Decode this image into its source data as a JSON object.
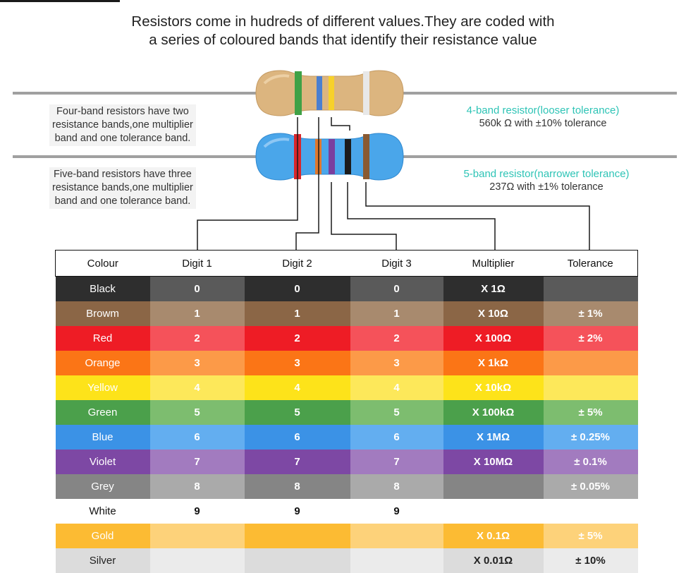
{
  "heading": {
    "line1": "Resistors come in hudreds of different values.They are coded with",
    "line2": "a series of coloured bands that identify their resistance value"
  },
  "notes": {
    "four_band": [
      "Four-band resistors have two",
      "resistance bands,one multiplier",
      "band and one tolerance band."
    ],
    "five_band": [
      "Five-band resistors have three",
      "resistance bands,one multiplier",
      "band and one tolerance band."
    ]
  },
  "labels": {
    "four_band": {
      "title": "4-band resistor(looser tolerance)",
      "value": "560k Ω with ±10% tolerance"
    },
    "five_band": {
      "title": "5-band resistor(narrower tolerance)",
      "value": "237Ω with ±1% tolerance"
    }
  },
  "colors": {
    "accent_label": "#2ec4b6",
    "resistor_tan": "#dcb57f",
    "resistor_blue": "#4aa6ea",
    "lead": "#9a9a9a"
  },
  "resistor_bands": {
    "four_band": [
      "Green",
      "Blue",
      "Yellow",
      "Silver"
    ],
    "five_band": [
      "Red",
      "Orange",
      "Violet",
      "Black",
      "Brown"
    ]
  },
  "table": {
    "headers": [
      "Colour",
      "Digit 1",
      "Digit 2",
      "Digit 3",
      "Multiplier",
      "Tolerance"
    ],
    "rows": [
      {
        "name": "Black",
        "d1": "0",
        "d2": "0",
        "d3": "0",
        "mult": "X 1Ω",
        "tol": "",
        "colors": [
          "#2e2e2e",
          "#5a5a5a",
          "#2e2e2e",
          "#5a5a5a",
          "#2e2e2e",
          "#5a5a5a"
        ],
        "nameColor": "#ffffff"
      },
      {
        "name": "Browm",
        "d1": "1",
        "d2": "1",
        "d3": "1",
        "mult": "X 10Ω",
        "tol": "± 1%",
        "colors": [
          "#8b6646",
          "#a88a6e",
          "#8b6646",
          "#a88a6e",
          "#8b6646",
          "#a88a6e"
        ],
        "nameColor": "#ffffff"
      },
      {
        "name": "Red",
        "d1": "2",
        "d2": "2",
        "d3": "2",
        "mult": "X 100Ω",
        "tol": "± 2%",
        "colors": [
          "#ee1c25",
          "#f5525a",
          "#ee1c25",
          "#f5525a",
          "#ee1c25",
          "#f5525a"
        ],
        "nameColor": "#ffffff"
      },
      {
        "name": "Orange",
        "d1": "3",
        "d2": "3",
        "d3": "3",
        "mult": "X 1kΩ",
        "tol": "",
        "colors": [
          "#fb7516",
          "#fc9a48",
          "#fb7516",
          "#fc9a48",
          "#fb7516",
          "#fc9a48"
        ],
        "nameColor": "#ffffff"
      },
      {
        "name": "Yellow",
        "d1": "4",
        "d2": "4",
        "d3": "4",
        "mult": "X 10kΩ",
        "tol": "",
        "colors": [
          "#fde31a",
          "#fde85a",
          "#fde31a",
          "#fde85a",
          "#fde31a",
          "#fde85a"
        ],
        "nameColor": "#ffffff"
      },
      {
        "name": "Green",
        "d1": "5",
        "d2": "5",
        "d3": "5",
        "mult": "X 100kΩ",
        "tol": "± 5%",
        "colors": [
          "#4ba04b",
          "#7dbd6f",
          "#4ba04b",
          "#7dbd6f",
          "#4ba04b",
          "#7dbd6f"
        ],
        "nameColor": "#ffffff"
      },
      {
        "name": "Blue",
        "d1": "6",
        "d2": "6",
        "d3": "6",
        "mult": "X 1MΩ",
        "tol": "± 0.25%",
        "colors": [
          "#3b92e6",
          "#63aef0",
          "#3b92e6",
          "#63aef0",
          "#3b92e6",
          "#63aef0"
        ],
        "nameColor": "#ffffff"
      },
      {
        "name": "Violet",
        "d1": "7",
        "d2": "7",
        "d3": "7",
        "mult": "X 10MΩ",
        "tol": "± 0.1%",
        "colors": [
          "#7d48a4",
          "#a27bbf",
          "#7d48a4",
          "#a27bbf",
          "#7d48a4",
          "#a27bbf"
        ],
        "nameColor": "#ffffff"
      },
      {
        "name": "Grey",
        "d1": "8",
        "d2": "8",
        "d3": "8",
        "mult": "",
        "tol": "± 0.05%",
        "colors": [
          "#858585",
          "#aaaaaa",
          "#858585",
          "#aaaaaa",
          "#858585",
          "#aaaaaa"
        ],
        "nameColor": "#ffffff"
      },
      {
        "name": "White",
        "d1": "9",
        "d2": "9",
        "d3": "9",
        "mult": "",
        "tol": "",
        "colors": [
          "#ffffff",
          "#ffffff",
          "#ffffff",
          "#ffffff",
          "#ffffff",
          "#ffffff"
        ],
        "nameColor": "#111111"
      },
      {
        "name": "Gold",
        "d1": "",
        "d2": "",
        "d3": "",
        "mult": "X 0.1Ω",
        "tol": "± 5%",
        "colors": [
          "#fcbb33",
          "#fdd27a",
          "#fcbb33",
          "#fdd27a",
          "#fcbb33",
          "#fdd27a"
        ],
        "nameColor": "#ffffff"
      },
      {
        "name": "Silver",
        "d1": "",
        "d2": "",
        "d3": "",
        "mult": "X 0.01Ω",
        "tol": "± 10%",
        "colors": [
          "#dcdcdc",
          "#ebebeb",
          "#dcdcdc",
          "#ebebeb",
          "#dcdcdc",
          "#ebebeb"
        ],
        "nameColor": "#222222"
      }
    ]
  }
}
